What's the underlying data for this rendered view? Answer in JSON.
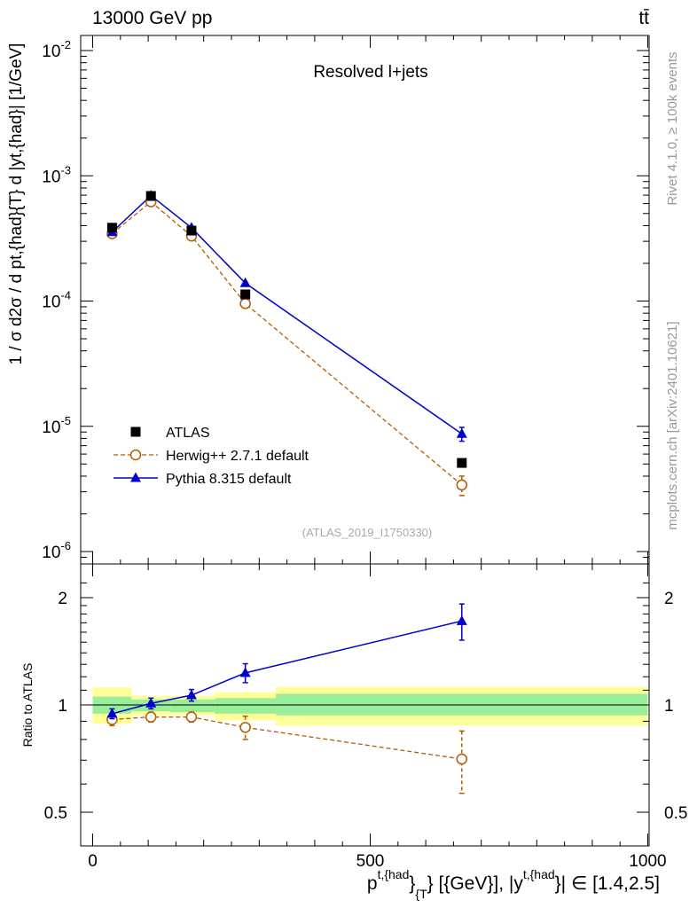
{
  "header": {
    "energy_label": "13000 GeV pp",
    "process_label": "tt̄"
  },
  "side": {
    "rivet_label": "Rivet 4.1.0, ≥ 100k events",
    "site_label": "mcplots.cern.ch [arXiv:2401.10621]"
  },
  "chart_data": [
    {
      "type": "scatter",
      "panel": "main",
      "title": "Resolved l+jets",
      "ylabel": "1 / σ d²σ / d p^{t,{had}}_{T} d |y^{t,{had}}| [1/GeV]",
      "ylabel_text": "1 / σ d2σ / d pt,{had}{T} d |yt,{had}| [1/GeV]",
      "yscale": "log",
      "xlim": [
        0,
        1000
      ],
      "ylim": [
        8e-07,
        0.013
      ],
      "ytick_labels": [
        "10-6",
        "10-5",
        "10-4",
        "10-3",
        "10-2"
      ],
      "watermark": "(ATLAS_2019_I1750330)",
      "legend_position": "middle-left",
      "series": [
        {
          "name": "ATLAS",
          "style": "black-square-marker",
          "color": "#000000",
          "x": [
            35,
            105,
            178,
            275,
            665
          ],
          "y": [
            0.000385,
            0.00069,
            0.000365,
            0.000113,
            5.1e-06
          ]
        },
        {
          "name": "Herwig++ 2.7.1 default",
          "style": "open-circle-dashed",
          "color": "#b35c00",
          "x": [
            35,
            105,
            178,
            275,
            665
          ],
          "y": [
            0.000345,
            0.00062,
            0.00033,
            9.55e-05,
            3.4e-06
          ],
          "err": [
            1.2e-05,
            2e-05,
            1.2e-05,
            5e-06,
            6e-07
          ]
        },
        {
          "name": "Pythia 8.315 default",
          "style": "filled-triangle-solid",
          "color": "#0000cc",
          "x": [
            35,
            105,
            178,
            275,
            665
          ],
          "y": [
            0.000355,
            0.000695,
            0.000385,
            0.000139,
            8.7e-06
          ],
          "err": [
            1e-05,
            2e-05,
            1.2e-05,
            7e-06,
            1.1e-06
          ]
        }
      ]
    },
    {
      "type": "scatter",
      "panel": "ratio",
      "ylabel": "Ratio to ATLAS",
      "xlabel": "p^{t,{had}}_{T} [{GeV}], |y^{t,{had}}| ∈ [1.4,2.5]",
      "xlabel_parts": {
        "p": "p",
        "sup": "t,{had",
        "close": "}",
        "sub": "{T",
        "mid": "} [{GeV}], |y",
        "sup2": "t,{had",
        "end": "}| ∈ [1.4,2.5]"
      },
      "yscale": "log",
      "xlim": [
        0,
        1000
      ],
      "ylim": [
        0.42,
        2.45
      ],
      "xticks": [
        0,
        500,
        1000
      ],
      "xtick_labels": [
        "0",
        "500",
        "1000"
      ],
      "yticks": [
        0.5,
        1,
        2
      ],
      "ytick_labels": [
        "0.5",
        "1",
        "2"
      ],
      "bands": [
        {
          "x0": 0,
          "x1": 70,
          "g_lo": 0.945,
          "g_hi": 1.055,
          "y_lo": 0.885,
          "y_hi": 1.12
        },
        {
          "x0": 70,
          "x1": 140,
          "g_lo": 0.96,
          "g_hi": 1.035,
          "y_lo": 0.935,
          "y_hi": 1.06
        },
        {
          "x0": 140,
          "x1": 220,
          "g_lo": 0.955,
          "g_hi": 1.035,
          "y_lo": 0.935,
          "y_hi": 1.06
        },
        {
          "x0": 220,
          "x1": 330,
          "g_lo": 0.945,
          "g_hi": 1.045,
          "y_lo": 0.905,
          "y_hi": 1.085
        },
        {
          "x0": 330,
          "x1": 1000,
          "g_lo": 0.935,
          "g_hi": 1.075,
          "y_lo": 0.875,
          "y_hi": 1.125
        }
      ],
      "series": [
        {
          "name": "Herwig++ 2.7.1 default",
          "color": "#b35c00",
          "x": [
            35,
            105,
            178,
            275,
            665
          ],
          "y": [
            0.91,
            0.925,
            0.925,
            0.865,
            0.705
          ],
          "err": [
            0.035,
            0.03,
            0.03,
            0.065,
            0.14
          ]
        },
        {
          "name": "Pythia 8.315 default",
          "color": "#0000cc",
          "x": [
            35,
            105,
            178,
            275,
            665
          ],
          "y": [
            0.945,
            1.01,
            1.065,
            1.23,
            1.72
          ],
          "err": [
            0.03,
            0.035,
            0.04,
            0.075,
            0.2
          ]
        }
      ]
    }
  ]
}
